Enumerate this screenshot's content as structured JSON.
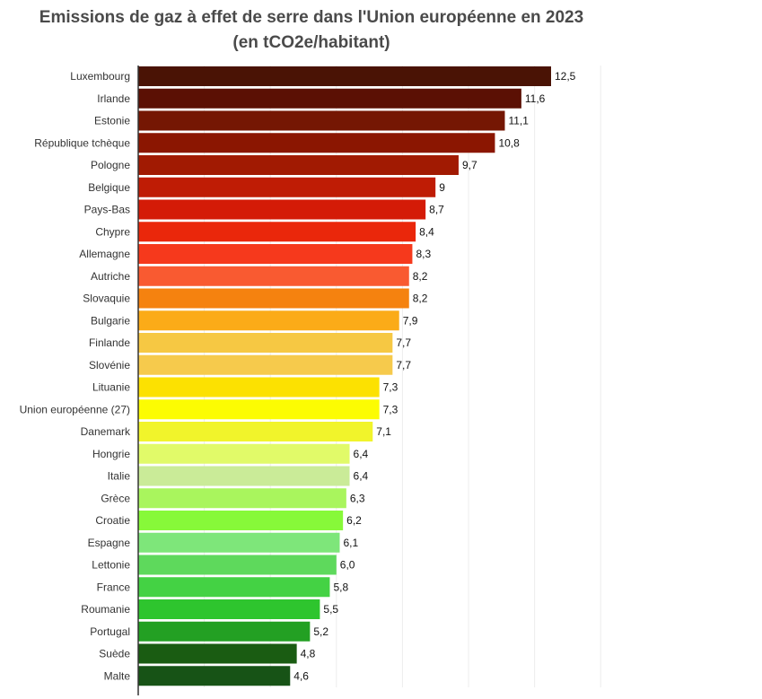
{
  "chart_data": {
    "type": "bar",
    "orientation": "horizontal",
    "title": "Emissions de gaz à effet de serre dans l'Union européenne en 2023",
    "subtitle": "(en tCO2e/habitant)",
    "xlabel": "",
    "ylabel": "",
    "xlim": [
      0,
      14
    ],
    "grid": true,
    "legend": "none",
    "categories": [
      "Luxembourg",
      "Irlande",
      "Estonie",
      "République tchèque",
      "Pologne",
      "Belgique",
      "Pays-Bas",
      "Chypre",
      "Allemagne",
      "Autriche",
      "Slovaquie",
      "Bulgarie",
      "Finlande",
      "Slovénie",
      "Lituanie",
      "Union européenne (27)",
      "Danemark",
      "Hongrie",
      "Italie",
      "Grèce",
      "Croatie",
      "Espagne",
      "Lettonie",
      "France",
      "Roumanie",
      "Portugal",
      "Suède",
      "Malte"
    ],
    "values": [
      12.5,
      11.6,
      11.1,
      10.8,
      9.7,
      9.0,
      8.7,
      8.4,
      8.3,
      8.2,
      8.2,
      7.9,
      7.7,
      7.7,
      7.3,
      7.3,
      7.1,
      6.4,
      6.4,
      6.3,
      6.2,
      6.1,
      6.0,
      5.8,
      5.5,
      5.2,
      4.8,
      4.6
    ],
    "value_labels": [
      "12,5",
      "11,6",
      "11,1",
      "10,8",
      "9,7",
      "9",
      "8,7",
      "8,4",
      "8,3",
      "8,2",
      "8,2",
      "7,9",
      "7,7",
      "7,7",
      "7,3",
      "7,3",
      "7,1",
      "6,4",
      "6,4",
      "6,3",
      "6,2",
      "6,1",
      "6,0",
      "5,8",
      "5,5",
      "5,2",
      "4,8",
      "4,6"
    ],
    "colors": [
      "#4a1305",
      "#5b1004",
      "#751703",
      "#8b1601",
      "#a11a02",
      "#bf1c05",
      "#d41b07",
      "#ea270b",
      "#f6391c",
      "#f95a31",
      "#f5820f",
      "#fbab18",
      "#f6c843",
      "#f6ca4c",
      "#fce101",
      "#fcfc02",
      "#f1f42b",
      "#e1fa69",
      "#caeb98",
      "#a9f55d",
      "#87f939",
      "#7ee67a",
      "#5ed95c",
      "#44d244",
      "#2ec52e",
      "#23a023",
      "#1a5c12",
      "#175316"
    ]
  }
}
